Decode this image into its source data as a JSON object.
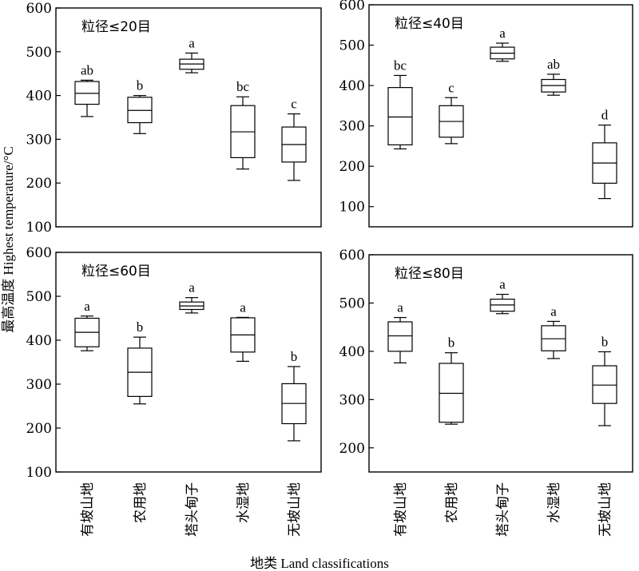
{
  "ylabel": "最高温度 Highest temperature/°C",
  "xlabel": "地类 Land classifications",
  "categories": [
    "有坡山地",
    "农用地",
    "塔头甸子",
    "水湿地",
    "无坡山地"
  ],
  "chart_data": [
    {
      "type": "box",
      "title": "粒径≤20目",
      "ylim": [
        100,
        600
      ],
      "yticks": [
        100,
        200,
        300,
        400,
        500,
        600
      ],
      "boxes": [
        {
          "category": "有坡山地",
          "min": 352,
          "q1": 380,
          "median": 405,
          "q3": 432,
          "max": 435,
          "letter": "ab"
        },
        {
          "category": "农用地",
          "min": 313,
          "q1": 338,
          "median": 366,
          "q3": 396,
          "max": 400,
          "letter": "b"
        },
        {
          "category": "塔头甸子",
          "min": 452,
          "q1": 460,
          "median": 472,
          "q3": 483,
          "max": 497,
          "letter": "a"
        },
        {
          "category": "水湿地",
          "min": 232,
          "q1": 258,
          "median": 317,
          "q3": 377,
          "max": 397,
          "letter": "bc"
        },
        {
          "category": "无坡山地",
          "min": 206,
          "q1": 248,
          "median": 288,
          "q3": 328,
          "max": 358,
          "letter": "c"
        }
      ]
    },
    {
      "type": "box",
      "title": "粒径≤40目",
      "ylim": [
        50,
        600
      ],
      "yticks": [
        100,
        200,
        300,
        400,
        500,
        600
      ],
      "boxes": [
        {
          "category": "有坡山地",
          "min": 243,
          "q1": 253,
          "median": 322,
          "q3": 395,
          "max": 425,
          "letter": "bc"
        },
        {
          "category": "农用地",
          "min": 256,
          "q1": 272,
          "median": 311,
          "q3": 350,
          "max": 370,
          "letter": "c"
        },
        {
          "category": "塔头甸子",
          "min": 460,
          "q1": 466,
          "median": 480,
          "q3": 495,
          "max": 505,
          "letter": "a"
        },
        {
          "category": "水湿地",
          "min": 376,
          "q1": 384,
          "median": 400,
          "q3": 415,
          "max": 428,
          "letter": "ab"
        },
        {
          "category": "无坡山地",
          "min": 120,
          "q1": 158,
          "median": 208,
          "q3": 258,
          "max": 302,
          "letter": "d"
        }
      ]
    },
    {
      "type": "box",
      "title": "粒径≤60目",
      "ylim": [
        100,
        600
      ],
      "yticks": [
        100,
        200,
        300,
        400,
        500,
        600
      ],
      "boxes": [
        {
          "category": "有坡山地",
          "min": 376,
          "q1": 385,
          "median": 418,
          "q3": 450,
          "max": 455,
          "letter": "a"
        },
        {
          "category": "农用地",
          "min": 255,
          "q1": 272,
          "median": 327,
          "q3": 382,
          "max": 407,
          "letter": "b"
        },
        {
          "category": "塔头甸子",
          "min": 462,
          "q1": 470,
          "median": 478,
          "q3": 487,
          "max": 497,
          "letter": "a"
        },
        {
          "category": "水湿地",
          "min": 352,
          "q1": 373,
          "median": 412,
          "q3": 451,
          "max": 452,
          "letter": "a"
        },
        {
          "category": "无坡山地",
          "min": 171,
          "q1": 210,
          "median": 256,
          "q3": 301,
          "max": 340,
          "letter": "b"
        }
      ]
    },
    {
      "type": "box",
      "title": "粒径≤80目",
      "ylim": [
        150,
        600
      ],
      "yticks": [
        200,
        300,
        400,
        500,
        600
      ],
      "boxes": [
        {
          "category": "有坡山地",
          "min": 376,
          "q1": 400,
          "median": 432,
          "q3": 461,
          "max": 470,
          "letter": "a"
        },
        {
          "category": "农用地",
          "min": 249,
          "q1": 253,
          "median": 313,
          "q3": 375,
          "max": 397,
          "letter": "b"
        },
        {
          "category": "塔头甸子",
          "min": 478,
          "q1": 483,
          "median": 496,
          "q3": 508,
          "max": 518,
          "letter": "a"
        },
        {
          "category": "水湿地",
          "min": 385,
          "q1": 401,
          "median": 426,
          "q3": 453,
          "max": 462,
          "letter": "a"
        },
        {
          "category": "无坡山地",
          "min": 246,
          "q1": 292,
          "median": 330,
          "q3": 370,
          "max": 399,
          "letter": "b"
        }
      ]
    }
  ]
}
